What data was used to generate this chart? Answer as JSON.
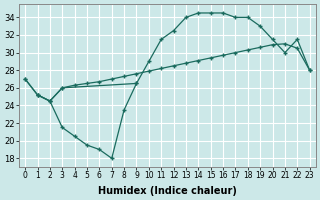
{
  "xlabel": "Humidex (Indice chaleur)",
  "bg_color": "#cce8e8",
  "grid_color": "#ffffff",
  "line_color": "#1a6b5e",
  "xlim": [
    -0.5,
    23.5
  ],
  "ylim": [
    17,
    35.5
  ],
  "xticks": [
    0,
    1,
    2,
    3,
    4,
    5,
    6,
    7,
    8,
    9,
    10,
    11,
    12,
    13,
    14,
    15,
    16,
    17,
    18,
    19,
    20,
    21,
    22,
    23
  ],
  "yticks": [
    18,
    20,
    22,
    24,
    26,
    28,
    30,
    32,
    34
  ],
  "line_almost_flat": {
    "x": [
      0,
      1,
      2,
      3,
      4,
      5,
      6,
      7,
      8,
      9,
      10,
      11,
      12,
      13,
      14,
      15,
      16,
      17,
      18,
      19,
      20,
      21,
      22,
      23
    ],
    "y": [
      27,
      25.2,
      24.5,
      26.0,
      26.3,
      26.5,
      26.7,
      27.0,
      27.3,
      27.6,
      27.9,
      28.2,
      28.5,
      28.8,
      29.1,
      29.4,
      29.7,
      30.0,
      30.3,
      30.6,
      30.9,
      31.0,
      30.5,
      28.0
    ]
  },
  "line_upper_arc": {
    "x": [
      0,
      1,
      2,
      3,
      9,
      10,
      11,
      12,
      13,
      14,
      15,
      16,
      17,
      18,
      19,
      20,
      21,
      22,
      23
    ],
    "y": [
      27,
      25.2,
      24.5,
      26.0,
      26.5,
      29.0,
      31.5,
      32.5,
      34.0,
      34.5,
      34.5,
      34.5,
      34.0,
      34.0,
      33.0,
      31.5,
      30.0,
      31.5,
      28.0
    ]
  },
  "line_lower_dip": {
    "x": [
      1,
      2,
      3,
      4,
      5,
      6,
      7,
      8,
      9
    ],
    "y": [
      25.2,
      24.5,
      21.5,
      20.5,
      19.5,
      19.0,
      18.0,
      23.5,
      26.5
    ]
  }
}
